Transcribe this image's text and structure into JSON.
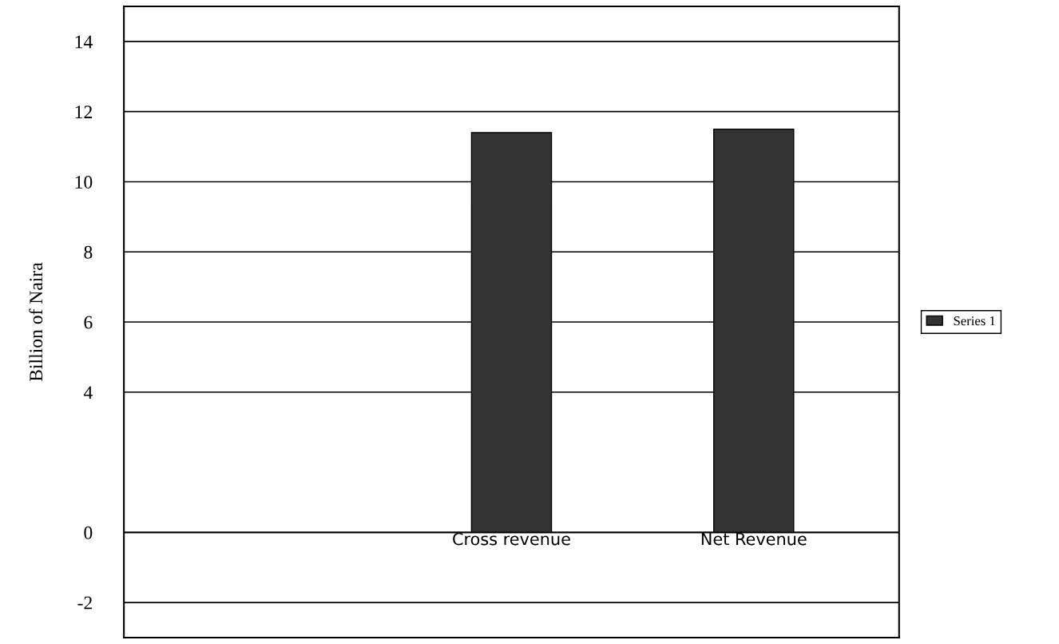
{
  "chart_data": {
    "type": "bar",
    "ylabel": "Billion of Naira",
    "categories": [
      null,
      "Cross revenue",
      "Net Revenue"
    ],
    "series": [
      {
        "name": "Series 1",
        "color": "#333333",
        "values": [
          null,
          11.4,
          11.5
        ]
      }
    ],
    "ylim": [
      -3,
      15
    ],
    "yticks": [
      -2,
      0,
      4,
      6,
      8,
      10,
      12,
      14
    ],
    "grid": "y",
    "legend": "right"
  }
}
